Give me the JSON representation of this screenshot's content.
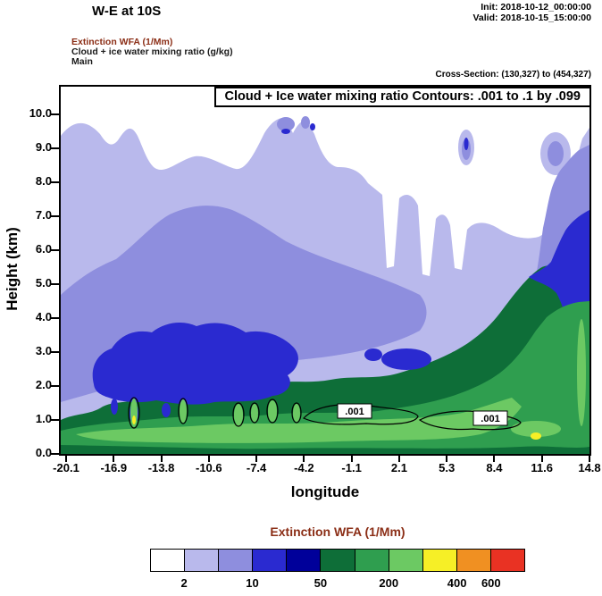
{
  "header": {
    "title": "W-E at 10S",
    "init": "Init: 2018-10-12_00:00:00",
    "valid": "Valid: 2018-10-15_15:00:00",
    "field_line_1": "Extinction WFA  (1/Mm)",
    "field_line_2": "Cloud + ice water mixing ratio  (g/kg)",
    "field_line_3": "Main",
    "cross_section": "Cross-Section: (130,327) to (454,327)"
  },
  "plot": {
    "contour_title": "Cloud + Ice water mixing ratio Contours: .001 to .1 by .099",
    "y_axis": {
      "label": "Height (km)",
      "ticks": [
        "0.0",
        "1.0",
        "2.0",
        "3.0",
        "4.0",
        "5.0",
        "6.0",
        "7.0",
        "8.0",
        "9.0",
        "10.0"
      ]
    },
    "x_axis": {
      "label": "longitude",
      "ticks": [
        "-20.1",
        "-16.9",
        "-13.8",
        "-10.6",
        "-7.4",
        "-4.2",
        "-1.1",
        "2.1",
        "5.3",
        "8.4",
        "11.6",
        "14.8"
      ]
    },
    "contour_labels": [
      ".001",
      ".001"
    ]
  },
  "colorbar": {
    "title": "Extinction WFA  (1/Mm)",
    "colors": [
      "#ffffff",
      "#b9b9ec",
      "#8e8ede",
      "#2a2ad0",
      "#00009a",
      "#0e6e38",
      "#2f9e4f",
      "#6cc963",
      "#f6ef26",
      "#f09022",
      "#e93223"
    ],
    "tick_labels": [
      "2",
      "10",
      "50",
      "200",
      "400",
      "600"
    ],
    "tick_boundary_indices": [
      1,
      3,
      5,
      7,
      9,
      10
    ]
  },
  "chart_data": {
    "type": "heatmap",
    "title": "Cloud + Ice water mixing ratio Contours: .001 to .1 by .099",
    "subtitle": "W-E at 10S",
    "xlabel": "longitude",
    "ylabel": "Height (km)",
    "x_tick_labels": [
      -20.1,
      -16.9,
      -13.8,
      -10.6,
      -7.4,
      -4.2,
      -1.1,
      2.1,
      5.3,
      8.4,
      11.6,
      14.8
    ],
    "y_tick_labels": [
      0.0,
      1.0,
      2.0,
      3.0,
      4.0,
      5.0,
      6.0,
      7.0,
      8.0,
      9.0,
      10.0
    ],
    "xlim": [
      -20.1,
      14.8
    ],
    "ylim": [
      0.0,
      10.8
    ],
    "fill_variable": "Extinction WFA (1/Mm)",
    "fill_scale_labeled_levels": [
      2,
      10,
      50,
      200,
      400,
      600
    ],
    "fill_palette": [
      "#ffffff",
      "#b9b9ec",
      "#8e8ede",
      "#2a2ad0",
      "#00009a",
      "#0e6e38",
      "#2f9e4f",
      "#6cc963",
      "#f6ef26",
      "#f09022",
      "#e93223"
    ],
    "contour_variable": "Cloud + ice water mixing ratio (g/kg)",
    "contour_levels": [
      0.001,
      0.1
    ],
    "contour_label_values": [
      0.001,
      0.001
    ],
    "cross_section_grid": "(130,327) to (454,327)",
    "init_time": "2018-10-12_00:00:00",
    "valid_time": "2018-10-15_15:00:00",
    "legend_position": "bottom",
    "grid": false
  }
}
